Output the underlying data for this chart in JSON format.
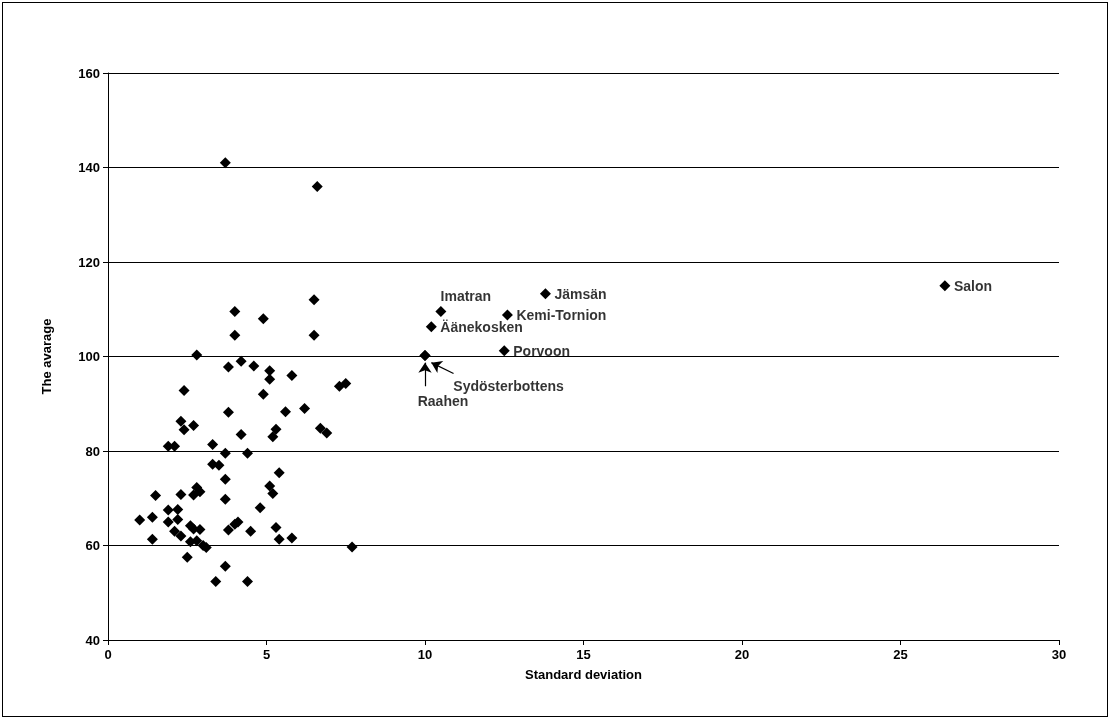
{
  "chart_data": {
    "type": "scatter",
    "xlabel": "Standard deviation",
    "ylabel": "The avarage",
    "xlim": [
      0,
      30
    ],
    "xticks": [
      0,
      5,
      10,
      15,
      20,
      25,
      30
    ],
    "ylim": [
      40,
      160
    ],
    "yticks": [
      40,
      60,
      80,
      100,
      120,
      140,
      160
    ],
    "grid": "y",
    "marker": "diamond",
    "series": [
      {
        "color": "#000000",
        "x": [
          3.7,
          6.6,
          6.5,
          4.0,
          4.9,
          6.5,
          4.0,
          2.8,
          4.2,
          5.1,
          3.8,
          4.6,
          5.8,
          5.1,
          2.4,
          4.9,
          7.5,
          7.3,
          3.8,
          5.6,
          6.2,
          2.3,
          2.7,
          2.4,
          5.3,
          6.7,
          6.9,
          4.2,
          5.2,
          1.9,
          2.1,
          3.7,
          4.4,
          3.3,
          3.5,
          3.3,
          1.5,
          2.3,
          2.7,
          2.8,
          2.9,
          3.7,
          3.7,
          5.1,
          5.2,
          5.4,
          4.8,
          1.9,
          2.2,
          1.0,
          1.4,
          1.9,
          2.2,
          2.1,
          2.3,
          2.6,
          2.7,
          2.6,
          2.9,
          2.8,
          3.0,
          3.1,
          1.4,
          2.5,
          3.8,
          4.0,
          4.1,
          4.5,
          5.3,
          5.4,
          5.8,
          7.7,
          3.7,
          3.4,
          4.4,
          10.5,
          13.8,
          12.6,
          10.2,
          12.5,
          10.0,
          10.0,
          26.4
        ],
        "values": [
          141,
          136,
          112,
          109.5,
          108,
          104.5,
          104.5,
          100.3,
          99,
          97,
          97.8,
          98,
          96,
          95.2,
          92.8,
          92,
          94.3,
          93.7,
          88.2,
          88.3,
          89,
          86.3,
          85.4,
          84.5,
          84.6,
          84.8,
          83.8,
          83.5,
          83,
          81,
          81,
          79.5,
          79.5,
          77.2,
          77,
          81.4,
          70.6,
          70.8,
          70.7,
          72.3,
          71.4,
          74,
          69.8,
          72.6,
          71,
          75.4,
          68,
          67.5,
          67.6,
          65.4,
          66,
          65,
          65.5,
          63,
          62,
          64.2,
          63.5,
          60.8,
          63.4,
          61,
          60,
          59.6,
          61.3,
          57.5,
          63.3,
          64.5,
          65,
          63,
          63.8,
          61.3,
          61.6,
          59.7,
          55.6,
          52.4,
          52.4,
          109.5,
          113.3,
          108.8,
          106.3,
          101.2,
          100.2,
          100.2,
          115
        ]
      }
    ],
    "annotations": [
      {
        "text": "Imatran",
        "x": 10.5,
        "y": 109.5
      },
      {
        "text": "Jämsän",
        "x": 13.8,
        "y": 113.3
      },
      {
        "text": "Kemi-Tornion",
        "x": 12.6,
        "y": 108.8
      },
      {
        "text": "Äänekosken",
        "x": 10.2,
        "y": 106.3
      },
      {
        "text": "Porvoon",
        "x": 12.5,
        "y": 101.2
      },
      {
        "text": "Sydösterbottens",
        "x": 10.0,
        "y": 100.2
      },
      {
        "text": "Raahen",
        "x": 10.0,
        "y": 100.2
      },
      {
        "text": "Salon",
        "x": 26.4,
        "y": 115
      }
    ]
  }
}
